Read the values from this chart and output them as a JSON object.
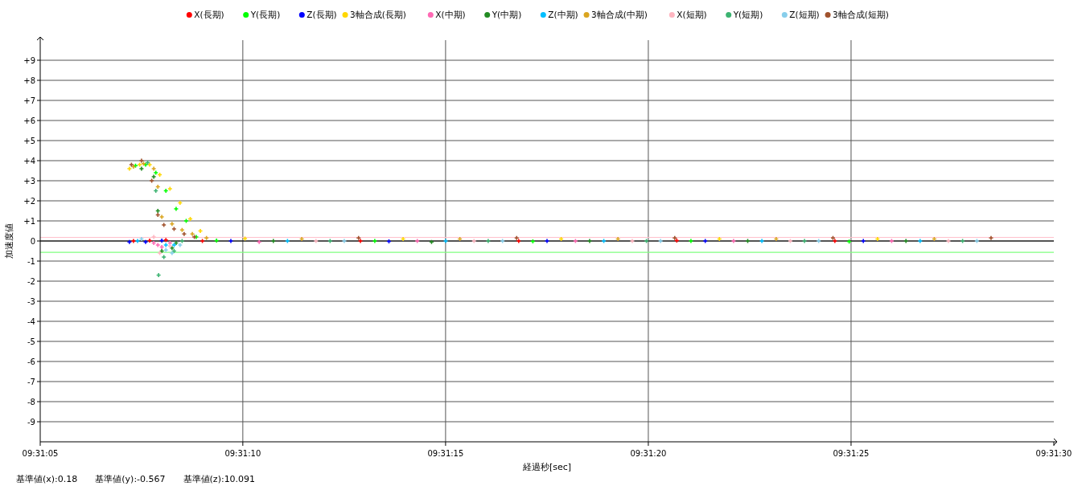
{
  "chart_data": {
    "type": "scatter",
    "xlabel": "経過秒[sec]",
    "ylabel": "加速度値",
    "annotations": [
      "基準値(x):0.18",
      "基準値(y):-0.567",
      "基準値(z):10.091"
    ],
    "xlim": [
      9.518056,
      9.525
    ],
    "xticks": [
      {
        "value": 9.518056,
        "label": "09:31:05"
      },
      {
        "value": 9.519444,
        "label": "09:31:10"
      },
      {
        "value": 9.520833,
        "label": "09:31:15"
      },
      {
        "value": 9.522222,
        "label": "09:31:20"
      },
      {
        "value": 9.523611,
        "label": "09:31:25"
      },
      {
        "value": 9.525,
        "label": "09:31:30"
      }
    ],
    "ylim": [
      -10,
      10
    ],
    "yticks": [
      -9,
      -8,
      -7,
      -6,
      -5,
      -4,
      -3,
      -2,
      -1,
      0,
      {
        "value": 1,
        "label": "+1"
      },
      {
        "value": 2,
        "label": "+2"
      },
      {
        "value": 3,
        "label": "+3"
      },
      {
        "value": 4,
        "label": "+4"
      },
      {
        "value": 5,
        "label": "+5"
      },
      {
        "value": 6,
        "label": "+6"
      },
      {
        "value": 7,
        "label": "+7"
      },
      {
        "value": 8,
        "label": "+8"
      },
      {
        "value": 9,
        "label": "+9"
      }
    ],
    "grid": true,
    "legend": "top",
    "marker": "cross",
    "ref_lines": [
      {
        "axis": "y",
        "value": 0,
        "color": "#000000"
      },
      {
        "axis": "y",
        "value": 0.18,
        "color": "#ffc0cb"
      },
      {
        "axis": "y",
        "value": -0.567,
        "color": "#80ff80"
      }
    ],
    "series": [
      {
        "name": "X(長期)",
        "color": "#ff0000",
        "x": [
          9.518695,
          9.518806,
          9.518917,
          9.519167,
          9.52025,
          9.521334,
          9.522417,
          9.5235
        ],
        "values": [
          0,
          0.02,
          0.05,
          0,
          0,
          0,
          0.02,
          0
        ]
      },
      {
        "name": "Y(長期)",
        "color": "#00ff00",
        "x": [
          9.518709,
          9.518778,
          9.518848,
          9.518917,
          9.518987,
          9.519056,
          9.519125,
          9.519264,
          9.520348,
          9.521431,
          9.522514,
          9.523598
        ],
        "values": [
          3.75,
          3.8,
          3.4,
          2.5,
          1.6,
          1.0,
          0.2,
          0.02,
          0,
          -0.02,
          0,
          -0.03
        ]
      },
      {
        "name": "Z(長期)",
        "color": "#0000ff",
        "x": [
          9.518667,
          9.518778,
          9.518889,
          9.519362,
          9.520445,
          9.521528,
          9.522612,
          9.523695
        ],
        "values": [
          -0.05,
          -0.05,
          0.02,
          0,
          -0.02,
          0,
          0,
          0
        ]
      },
      {
        "name": "3軸合成(長期)",
        "color": "#ffd700",
        "x": [
          9.518667,
          9.518737,
          9.518806,
          9.518875,
          9.518945,
          9.519014,
          9.519084,
          9.519153,
          9.519459,
          9.520542,
          9.521625,
          9.522709,
          9.523792
        ],
        "values": [
          3.6,
          3.8,
          3.8,
          3.3,
          2.6,
          1.9,
          1.1,
          0.5,
          0.12,
          0.1,
          0.1,
          0.1,
          0.1
        ]
      },
      {
        "name": "X(中期)",
        "color": "#ff69b4",
        "x": [
          9.518834,
          9.518862,
          9.518889,
          9.518945,
          9.519556,
          9.520639,
          9.521723,
          9.522806,
          9.523889
        ],
        "values": [
          -0.1,
          -0.2,
          -0.3,
          -0.1,
          -0.05,
          0,
          0,
          0,
          0
        ]
      },
      {
        "name": "Y(中期)",
        "color": "#228b22",
        "x": [
          9.51875,
          9.518834,
          9.518862,
          9.518889,
          9.518959,
          9.518987,
          9.519653,
          9.520737,
          9.52182,
          9.522903,
          9.523987
        ],
        "values": [
          3.6,
          3.2,
          1.5,
          -0.5,
          -0.35,
          -0.1,
          0,
          -0.05,
          0,
          0,
          0
        ]
      },
      {
        "name": "Z(中期)",
        "color": "#00bfff",
        "x": [
          9.518723,
          9.518917,
          9.518973,
          9.51975,
          9.520834,
          9.521917,
          9.523,
          9.524084
        ],
        "values": [
          0,
          -0.2,
          -0.2,
          0,
          0,
          0,
          0,
          0
        ]
      },
      {
        "name": "3軸合成(中期)",
        "color": "#daa520",
        "x": [
          9.518695,
          9.518764,
          9.518834,
          9.518862,
          9.518889,
          9.518959,
          9.519028,
          9.519098,
          9.519195,
          9.519848,
          9.520931,
          9.522014,
          9.523098,
          9.524181
        ],
        "values": [
          3.7,
          3.85,
          3.6,
          2.7,
          1.2,
          0.85,
          0.55,
          0.35,
          0.15,
          0.1,
          0.1,
          0.1,
          0.1,
          0.1
        ]
      },
      {
        "name": "X(短期)",
        "color": "#ffb6c1",
        "x": [
          9.518834,
          9.518875,
          9.518945,
          9.519945,
          9.521028,
          9.522112,
          9.523195,
          9.524278
        ],
        "values": [
          0.2,
          -0.6,
          -0.25,
          0,
          0,
          0,
          0,
          0
        ]
      },
      {
        "name": "Y(短期)",
        "color": "#3cb371",
        "x": [
          9.518792,
          9.518848,
          9.518867,
          9.518903,
          9.518973,
          9.519028,
          9.520042,
          9.521125,
          9.522209,
          9.523292,
          9.524375
        ],
        "values": [
          3.9,
          2.5,
          -1.7,
          -0.8,
          -0.5,
          0,
          0,
          0,
          0,
          0,
          0
        ]
      },
      {
        "name": "Z(短期)",
        "color": "#87ceeb",
        "x": [
          9.51875,
          9.518917,
          9.518959,
          9.519014,
          9.520139,
          9.521223,
          9.522306,
          9.523389,
          9.524473
        ],
        "values": [
          0.1,
          -0.45,
          -0.6,
          -0.2,
          0,
          0,
          0,
          0,
          0
        ]
      },
      {
        "name": "3軸合成(短期)",
        "color": "#a0522d",
        "x": [
          9.518681,
          9.51875,
          9.51882,
          9.518862,
          9.518903,
          9.518973,
          9.519042,
          9.519112,
          9.520237,
          9.52132,
          9.522403,
          9.523487,
          9.52457
        ],
        "values": [
          3.8,
          4.0,
          3.0,
          1.3,
          0.8,
          0.6,
          0.35,
          0.2,
          0.15,
          0.15,
          0.15,
          0.15,
          0.15
        ]
      }
    ]
  }
}
